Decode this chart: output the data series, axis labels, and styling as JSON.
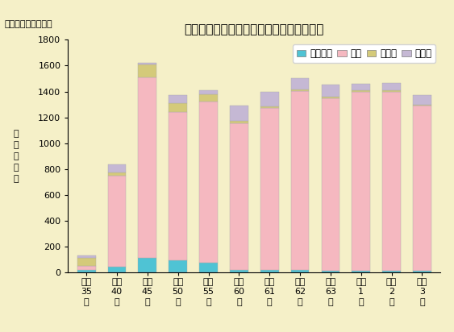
{
  "title": "和歌山県における樹種別外材輸入量の推移",
  "ylabel_rotated": "木\n材\n需\n要\n量",
  "yunits": "（千立方メートル）",
  "categories": [
    "昭和\n35\n年",
    "昭和\n40\n年",
    "昭和\n45\n年",
    "昭和\n50\n年",
    "昭和\n55\n年",
    "昭和\n60\n年",
    "昭和\n61\n年",
    "昭和\n62\n年",
    "昭和\n63\n年",
    "平成\n1\n年",
    "平成\n2\n年",
    "平成\n3\n年"
  ],
  "series": {
    "ワラン材": [
      20,
      45,
      110,
      90,
      75,
      15,
      20,
      15,
      10,
      10,
      10,
      10
    ],
    "米材": [
      30,
      700,
      1400,
      1150,
      1250,
      1140,
      1250,
      1390,
      1340,
      1390,
      1390,
      1280
    ],
    "北洋材": [
      60,
      30,
      100,
      70,
      55,
      20,
      15,
      10,
      10,
      10,
      10,
      10
    ],
    "その他": [
      20,
      60,
      10,
      60,
      30,
      115,
      115,
      90,
      95,
      50,
      55,
      70
    ]
  },
  "colors": {
    "ワラン材": "#4fc3d4",
    "米材": "#f5b8c0",
    "北洋材": "#d4ca7a",
    "その他": "#c5b8d4"
  },
  "ylim": [
    0,
    1800
  ],
  "yticks": [
    0,
    200,
    400,
    600,
    800,
    1000,
    1200,
    1400,
    1600,
    1800
  ],
  "background_color": "#f5f0c8",
  "bar_width": 0.6,
  "title_fontsize": 11,
  "legend_fontsize": 8.5,
  "tick_fontsize": 8,
  "units_fontsize": 8
}
